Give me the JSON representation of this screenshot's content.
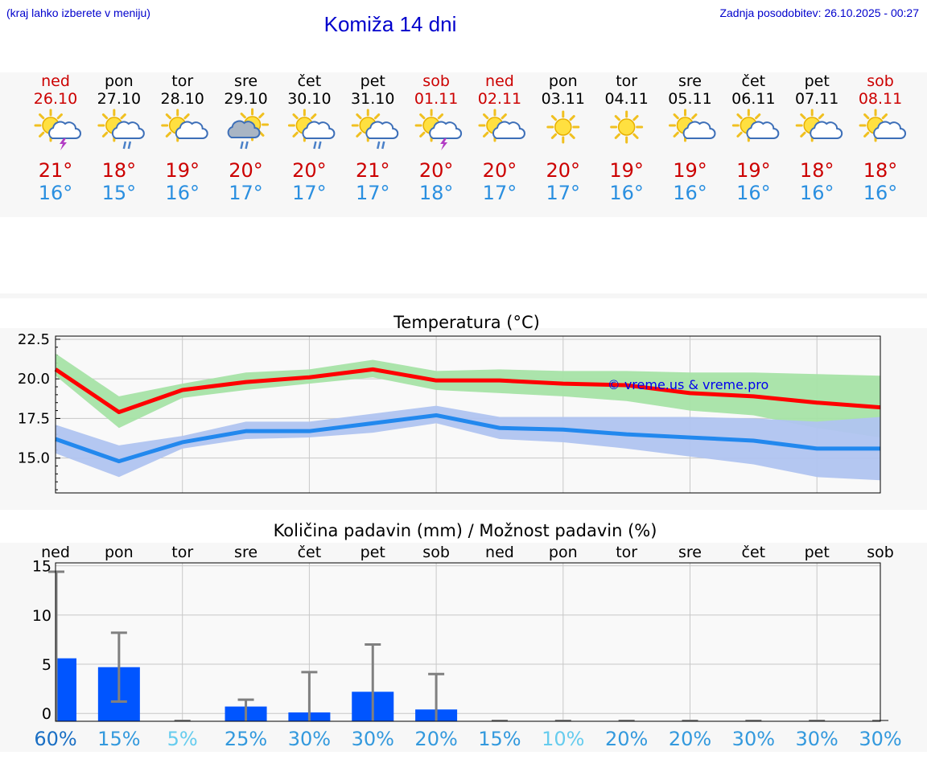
{
  "header": {
    "hint": "(kraj lahko izberete v meniju)",
    "title": "Komiža 14 dni",
    "updated": "Zadnja posodobitev: 26.10.2025 - 00:27"
  },
  "colors": {
    "weekend": "#cc0000",
    "weekday": "#000000",
    "high": "#cc0000",
    "low": "#2a8fe0",
    "accent": "#0000cc"
  },
  "days": [
    {
      "name": "ned",
      "date": "26.10",
      "weekend": true,
      "icon": "sun-cloud-thunder-icon",
      "high": "21°",
      "low": "16°"
    },
    {
      "name": "pon",
      "date": "27.10",
      "weekend": false,
      "icon": "sun-cloud-rain-icon",
      "high": "18°",
      "low": "15°"
    },
    {
      "name": "tor",
      "date": "28.10",
      "weekend": false,
      "icon": "sun-cloud-icon",
      "high": "19°",
      "low": "16°"
    },
    {
      "name": "sre",
      "date": "29.10",
      "weekend": false,
      "icon": "sun-grey-cloud-rain-icon",
      "high": "20°",
      "low": "17°"
    },
    {
      "name": "čet",
      "date": "30.10",
      "weekend": false,
      "icon": "sun-cloud-rain-icon",
      "high": "20°",
      "low": "17°"
    },
    {
      "name": "pet",
      "date": "31.10",
      "weekend": false,
      "icon": "sun-cloud-rain-icon",
      "high": "21°",
      "low": "17°"
    },
    {
      "name": "sob",
      "date": "01.11",
      "weekend": true,
      "icon": "sun-cloud-thunder-icon",
      "high": "20°",
      "low": "18°"
    },
    {
      "name": "ned",
      "date": "02.11",
      "weekend": true,
      "icon": "sun-cloud-icon",
      "high": "20°",
      "low": "17°"
    },
    {
      "name": "pon",
      "date": "03.11",
      "weekend": false,
      "icon": "sun-icon",
      "high": "20°",
      "low": "17°"
    },
    {
      "name": "tor",
      "date": "04.11",
      "weekend": false,
      "icon": "sun-icon",
      "high": "19°",
      "low": "16°"
    },
    {
      "name": "sre",
      "date": "05.11",
      "weekend": false,
      "icon": "sun-cloud-icon",
      "high": "19°",
      "low": "16°"
    },
    {
      "name": "čet",
      "date": "06.11",
      "weekend": false,
      "icon": "sun-cloud-icon",
      "high": "19°",
      "low": "16°"
    },
    {
      "name": "pet",
      "date": "07.11",
      "weekend": false,
      "icon": "sun-cloud-icon",
      "high": "18°",
      "low": "16°"
    },
    {
      "name": "sob",
      "date": "08.11",
      "weekend": true,
      "icon": "sun-cloud-icon",
      "high": "18°",
      "low": "16°"
    }
  ],
  "chart_data": [
    {
      "type": "line",
      "title": "Temperatura (°C)",
      "watermark": "© vreme.us & vreme.pro",
      "x": [
        0,
        1,
        2,
        3,
        4,
        5,
        6,
        7,
        8,
        9,
        10,
        11,
        12,
        13
      ],
      "ylim": [
        12.8,
        22.7
      ],
      "yticks": [
        "22.5",
        "20.0",
        "17.5",
        "15.0"
      ],
      "ytick_values": [
        22.5,
        20.0,
        17.5,
        15.0
      ],
      "grid": true,
      "series": [
        {
          "values": [
            20.6,
            17.9,
            19.3,
            19.8,
            20.1,
            20.6,
            19.9,
            19.9,
            19.7,
            19.6,
            19.1,
            18.9,
            18.5,
            18.2
          ],
          "color": "#ff0000",
          "band_lower": [
            20.2,
            16.9,
            18.8,
            19.3,
            19.7,
            20.1,
            19.3,
            19.1,
            18.9,
            18.6,
            18.0,
            17.7,
            16.9,
            16.3
          ],
          "band_upper": [
            21.6,
            18.9,
            19.7,
            20.4,
            20.6,
            21.2,
            20.5,
            20.6,
            20.5,
            20.5,
            20.4,
            20.4,
            20.3,
            20.2
          ],
          "band_color": "#a6e3a6"
        },
        {
          "values": [
            16.2,
            14.8,
            16.0,
            16.7,
            16.7,
            17.2,
            17.7,
            16.9,
            16.8,
            16.5,
            16.3,
            16.1,
            15.6,
            15.6
          ],
          "color": "#2288ee",
          "band_lower": [
            15.3,
            13.8,
            15.6,
            16.2,
            16.3,
            16.6,
            17.2,
            16.2,
            16.0,
            15.6,
            15.1,
            14.6,
            13.8,
            13.6
          ],
          "band_upper": [
            17.1,
            15.8,
            16.4,
            17.3,
            17.3,
            17.8,
            18.3,
            17.6,
            17.6,
            17.6,
            17.6,
            17.5,
            17.3,
            17.6
          ],
          "band_color": "#b0c4f0"
        }
      ]
    },
    {
      "type": "bar",
      "title": "Količina padavin (mm) / Možnost padavin (%)",
      "categories": [
        "ned",
        "pon",
        "tor",
        "sre",
        "čet",
        "pet",
        "sob",
        "ned",
        "pon",
        "tor",
        "sre",
        "čet",
        "pet",
        "sob"
      ],
      "values": [
        5.6,
        4.7,
        0,
        0.7,
        0.1,
        2.2,
        0.4,
        0,
        0,
        0,
        0,
        0,
        0,
        0
      ],
      "error_upper": [
        14.4,
        8.2,
        0,
        1.4,
        4.2,
        7.0,
        4.0,
        0,
        0,
        0,
        0,
        0,
        0,
        0
      ],
      "error_lower": [
        0,
        1.2,
        0,
        0,
        0,
        0,
        0,
        0,
        0,
        0,
        0,
        0,
        0,
        0
      ],
      "ylim": [
        -0.8,
        15.3
      ],
      "yticks": [
        "15",
        "10",
        "5",
        "0"
      ],
      "ytick_values": [
        15,
        10,
        5,
        0
      ],
      "bar_color": "#0055ff",
      "error_color": "#808080",
      "chance": [
        "60%",
        "15%",
        "5%",
        "25%",
        "30%",
        "30%",
        "20%",
        "15%",
        "10%",
        "20%",
        "20%",
        "30%",
        "30%",
        "30%"
      ],
      "chance_colors": [
        "#1a6fc4",
        "#3399dd",
        "#66ccee",
        "#3399dd",
        "#3399dd",
        "#3399dd",
        "#3399dd",
        "#3399dd",
        "#66ccee",
        "#3399dd",
        "#3399dd",
        "#3399dd",
        "#3399dd",
        "#3399dd"
      ],
      "grid": true
    }
  ]
}
